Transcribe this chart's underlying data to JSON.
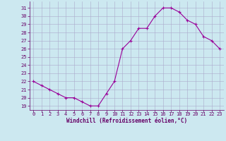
{
  "hours": [
    0,
    1,
    2,
    3,
    4,
    5,
    6,
    7,
    8,
    9,
    10,
    11,
    12,
    13,
    14,
    15,
    16,
    17,
    18,
    19,
    20,
    21,
    22,
    23
  ],
  "windchill": [
    22.0,
    21.5,
    21.0,
    20.5,
    20.0,
    20.0,
    19.5,
    19.0,
    19.0,
    20.5,
    22.0,
    26.0,
    27.0,
    28.5,
    28.5,
    30.0,
    31.0,
    31.0,
    30.5,
    29.5,
    29.0,
    27.5,
    27.0,
    26.0
  ],
  "line_color": "#990099",
  "marker": "+",
  "marker_color": "#990099",
  "bg_color": "#cce8f0",
  "grid_color": "#aaaacc",
  "xlabel": "Windchill (Refroidissement éolien,°C)",
  "xlabel_color": "#660066",
  "tick_color": "#660066",
  "ylim": [
    18.5,
    31.8
  ],
  "xlim": [
    -0.5,
    23.5
  ],
  "yticks": [
    19,
    20,
    21,
    22,
    23,
    24,
    25,
    26,
    27,
    28,
    29,
    30,
    31
  ],
  "xticks": [
    0,
    1,
    2,
    3,
    4,
    5,
    6,
    7,
    8,
    9,
    10,
    11,
    12,
    13,
    14,
    15,
    16,
    17,
    18,
    19,
    20,
    21,
    22,
    23
  ],
  "spine_color": "#660066",
  "font_family": "monospace"
}
